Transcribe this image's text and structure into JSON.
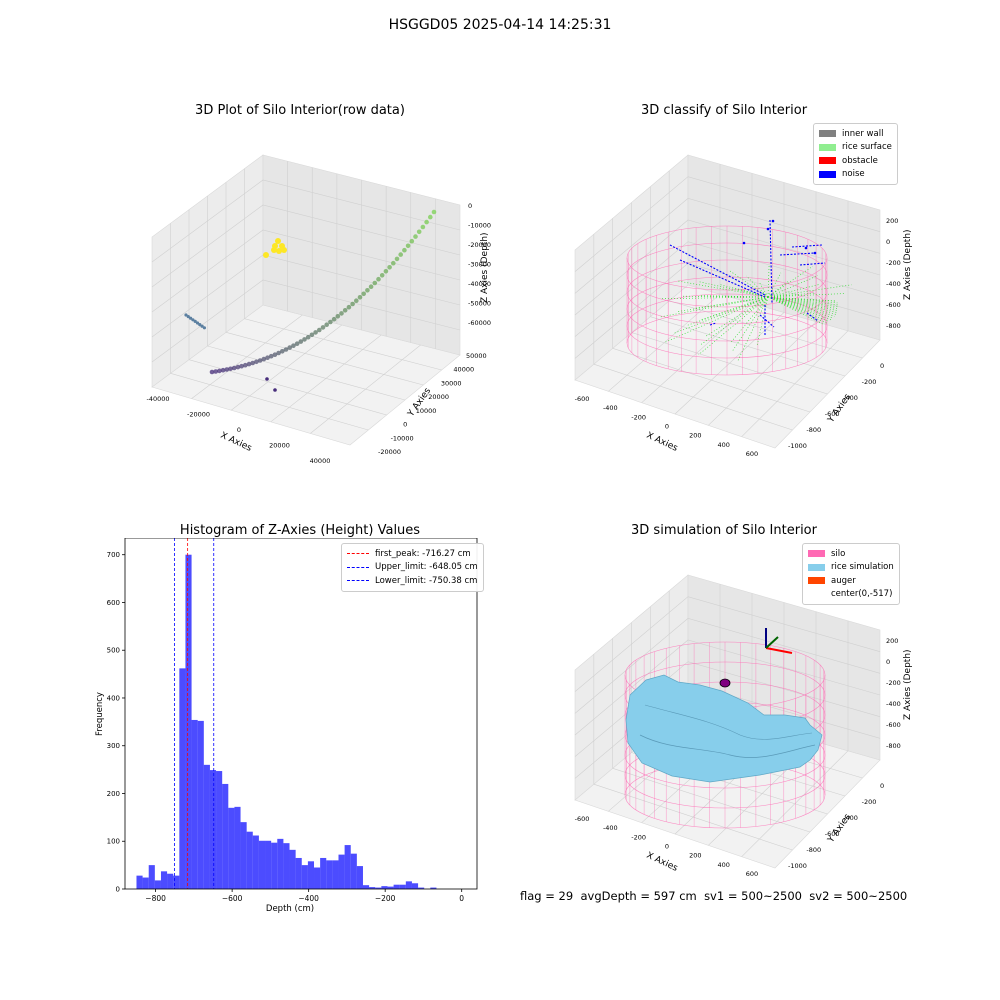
{
  "figure": {
    "suptitle": "HSGGD05 2025-04-14 14:25:31",
    "footer": {
      "flag": "flag = 29",
      "avg_depth": "avgDepth = 597 cm",
      "sv1": "sv1 = 500~2500",
      "sv2": "sv2 = 500~2500"
    }
  },
  "panel_raw": {
    "title": "3D Plot of Silo Interior(row data)",
    "xlabel": "X Axies",
    "ylabel": "Y Axies",
    "zlabel": "Z Axies (Depth)",
    "x_ticks": [
      "-40000",
      "-20000",
      "0",
      "20000",
      "40000"
    ],
    "y_ticks": [
      "-20000",
      "-10000",
      "0",
      "10000",
      "20000",
      "30000",
      "40000",
      "50000"
    ],
    "z_ticks": [
      "0",
      "-10000",
      "-20000",
      "-30000",
      "-40000",
      "-50000",
      "-60000"
    ],
    "colors": {
      "arc_low": "#472d7b",
      "arc_high": "#7ad151",
      "yellow_cluster": "#fde725",
      "strand": "#5b7fa0"
    }
  },
  "panel_classify": {
    "title": "3D classify of Silo Interior",
    "xlabel": "X Axies",
    "ylabel": "Y Axies",
    "zlabel": "Z Axies (Depth)",
    "x_ticks": [
      "-600",
      "-400",
      "-200",
      "0",
      "200",
      "400",
      "600"
    ],
    "y_ticks": [
      "-1000",
      "-800",
      "-600",
      "-400",
      "-200",
      "0"
    ],
    "z_ticks": [
      "200",
      "0",
      "-200",
      "-400",
      "-600",
      "-800"
    ],
    "legend": [
      {
        "label": "inner wall",
        "color": "#808080"
      },
      {
        "label": "rice surface",
        "color": "#90ee90"
      },
      {
        "label": "obstacle",
        "color": "#ff0000"
      },
      {
        "label": "noise",
        "color": "#0000ff"
      }
    ]
  },
  "panel_hist": {
    "title": "Histogram of Z-Axies (Height) Values",
    "xlabel": "Depth (cm)",
    "ylabel": "Frequency",
    "x_ticks": [
      "-800",
      "-600",
      "-400",
      "-200",
      "0"
    ],
    "y_ticks": [
      "0",
      "100",
      "200",
      "300",
      "400",
      "500",
      "600",
      "700"
    ],
    "legend": [
      {
        "label": "first_peak: -716.27 cm",
        "color": "#ff0000"
      },
      {
        "label": "Upper_limit: -648.05 cm",
        "color": "#0000ff"
      },
      {
        "label": "Lower_limit: -750.38 cm",
        "color": "#0000ff"
      }
    ]
  },
  "panel_sim": {
    "title": "3D simulation of Silo Interior",
    "xlabel": "X Axies",
    "ylabel": "Y Axies",
    "zlabel": "Z Axies (Depth)",
    "x_ticks": [
      "-600",
      "-400",
      "-200",
      "0",
      "200",
      "400",
      "600"
    ],
    "y_ticks": [
      "-1000",
      "-800",
      "-600",
      "-400",
      "-200",
      "0"
    ],
    "z_ticks": [
      "200",
      "0",
      "-200",
      "-400",
      "-600",
      "-800"
    ],
    "legend": [
      {
        "label": "silo",
        "color": "#ff69b4"
      },
      {
        "label": "rice simulation",
        "color": "#87ceeb"
      },
      {
        "label": "auger",
        "color": "#ff4500"
      },
      {
        "label": "center(0,-517)",
        "color": ""
      }
    ]
  },
  "chart_data": {
    "type": "bar",
    "title": "Histogram of Z-Axies (Height) Values",
    "xlabel": "Depth (cm)",
    "ylabel": "Frequency",
    "xlim": [
      -880,
      40
    ],
    "ylim": [
      0,
      735
    ],
    "bin_width": 16,
    "bin_start": -850,
    "counts": [
      28,
      24,
      50,
      18,
      37,
      32,
      28,
      462,
      700,
      354,
      352,
      260,
      249,
      247,
      220,
      170,
      172,
      140,
      120,
      112,
      101,
      101,
      97,
      105,
      96,
      82,
      65,
      50,
      58,
      45,
      65,
      60,
      60,
      72,
      92,
      74,
      48,
      8,
      4,
      3,
      6,
      5,
      9,
      9,
      16,
      12,
      3,
      0,
      3,
      0
    ],
    "vlines": [
      {
        "x": -716.27,
        "color": "#ff0000"
      },
      {
        "x": -648.05,
        "color": "#0000ff"
      },
      {
        "x": -750.38,
        "color": "#0000ff"
      }
    ]
  }
}
